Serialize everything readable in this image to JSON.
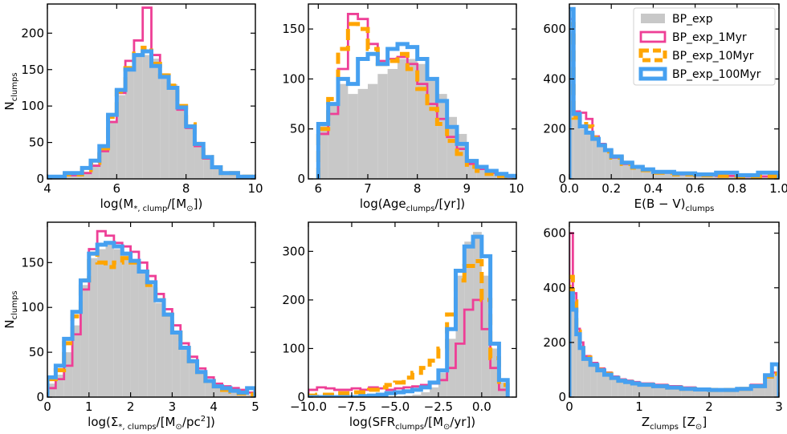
{
  "colors": {
    "BP_exp": "#c8c8c8",
    "BP_exp_1Myr": "#ee3f96",
    "BP_exp_10Myr": "#ffa500",
    "BP_exp_100Myr": "#46a0f0"
  },
  "legend": {
    "placement": "top-right of top-right panel",
    "entries": [
      "BP_exp",
      "BP_exp_1Myr",
      "BP_exp_10Myr",
      "BP_exp_100Myr"
    ]
  },
  "chart_data": [
    {
      "type": "histogram",
      "panel": "top-left",
      "xlabel": {
        "pre": "log(M",
        "sub": "*, clump",
        "post": "/[M",
        "sun": true,
        "end": "])"
      },
      "ylabel": {
        "main": "N",
        "sub": "clumps"
      },
      "xlim": [
        4,
        10
      ],
      "ylim": [
        0,
        240
      ],
      "xticks": [
        4,
        6,
        8,
        10
      ],
      "yticks": [
        0,
        50,
        100,
        150,
        200
      ],
      "bin_edges": [
        4.0,
        4.5,
        5.0,
        5.25,
        5.5,
        5.75,
        6.0,
        6.25,
        6.5,
        6.75,
        7.0,
        7.25,
        7.5,
        7.75,
        8.0,
        8.25,
        8.5,
        8.75,
        9.0,
        9.5,
        10.0
      ],
      "series": [
        {
          "name": "BP_exp",
          "values": [
            2,
            5,
            10,
            20,
            40,
            80,
            115,
            150,
            170,
            170,
            165,
            145,
            130,
            100,
            75,
            50,
            30,
            18,
            8,
            3
          ]
        },
        {
          "name": "BP_exp_1Myr",
          "values": [
            2,
            5,
            8,
            18,
            38,
            78,
            118,
            162,
            190,
            235,
            170,
            140,
            125,
            95,
            70,
            45,
            28,
            15,
            7,
            3
          ]
        },
        {
          "name": "BP_exp_10Myr",
          "values": [
            2,
            6,
            12,
            22,
            42,
            85,
            120,
            152,
            172,
            180,
            158,
            142,
            128,
            100,
            75,
            48,
            30,
            16,
            8,
            3
          ]
        },
        {
          "name": "BP_exp_100Myr",
          "values": [
            3,
            8,
            15,
            25,
            45,
            88,
            122,
            150,
            170,
            175,
            155,
            140,
            125,
            98,
            72,
            48,
            30,
            16,
            8,
            3
          ]
        }
      ]
    },
    {
      "type": "histogram",
      "panel": "top-middle",
      "xlabel": {
        "pre": "log(Age",
        "sub": "clumps",
        "post": "/[yr])"
      },
      "ylabel": null,
      "xlim": [
        5.8,
        10
      ],
      "ylim": [
        0,
        175
      ],
      "xticks": [
        6,
        7,
        8,
        9,
        10
      ],
      "yticks": [
        0,
        50,
        100,
        150
      ],
      "bin_edges": [
        6.0,
        6.2,
        6.4,
        6.6,
        6.8,
        7.0,
        7.2,
        7.4,
        7.6,
        7.8,
        8.0,
        8.2,
        8.4,
        8.6,
        8.8,
        9.0,
        9.2,
        9.4,
        9.6,
        9.8,
        10.0
      ],
      "series": [
        {
          "name": "BP_exp",
          "values": [
            55,
            75,
            95,
            85,
            90,
            95,
            105,
            110,
            120,
            120,
            115,
            100,
            85,
            62,
            45,
            20,
            12,
            8,
            6,
            3
          ]
        },
        {
          "name": "BP_exp_1Myr",
          "values": [
            45,
            65,
            110,
            165,
            160,
            135,
            118,
            120,
            122,
            115,
            95,
            75,
            60,
            42,
            30,
            15,
            10,
            6,
            4,
            2
          ]
        },
        {
          "name": "BP_exp_10Myr",
          "values": [
            50,
            80,
            130,
            155,
            150,
            130,
            115,
            118,
            125,
            110,
            90,
            70,
            55,
            38,
            25,
            12,
            8,
            5,
            3,
            2
          ]
        },
        {
          "name": "BP_exp_100Myr",
          "values": [
            55,
            75,
            100,
            95,
            120,
            125,
            115,
            130,
            135,
            132,
            120,
            100,
            78,
            52,
            35,
            18,
            12,
            8,
            5,
            3
          ]
        }
      ]
    },
    {
      "type": "histogram",
      "panel": "top-right",
      "xlabel": {
        "pre": "E(B − V)",
        "sub": "clumps",
        "post": ""
      },
      "ylabel": null,
      "xlim": [
        0,
        1.0
      ],
      "ylim": [
        0,
        700
      ],
      "xticks": [
        0.0,
        0.2,
        0.4,
        0.6,
        0.8,
        1.0
      ],
      "yticks": [
        0,
        200,
        400,
        600
      ],
      "bin_edges": [
        0.0,
        0.02,
        0.05,
        0.08,
        0.11,
        0.14,
        0.17,
        0.2,
        0.25,
        0.3,
        0.35,
        0.4,
        0.5,
        0.6,
        0.7,
        0.8,
        0.9,
        1.0
      ],
      "series": [
        {
          "name": "BP_exp",
          "values": [
            590,
            250,
            200,
            180,
            160,
            130,
            110,
            85,
            60,
            45,
            35,
            25,
            18,
            15,
            12,
            10,
            10
          ]
        },
        {
          "name": "BP_exp_1Myr",
          "values": [
            640,
            270,
            265,
            240,
            170,
            140,
            115,
            85,
            60,
            45,
            35,
            25,
            18,
            15,
            12,
            10,
            10
          ]
        },
        {
          "name": "BP_exp_10Myr",
          "values": [
            620,
            245,
            230,
            210,
            165,
            135,
            110,
            85,
            60,
            45,
            35,
            25,
            18,
            15,
            12,
            10,
            10
          ]
        },
        {
          "name": "BP_exp_100Myr",
          "values": [
            680,
            260,
            210,
            185,
            160,
            135,
            115,
            90,
            65,
            48,
            38,
            28,
            22,
            18,
            25,
            15,
            25
          ]
        }
      ]
    },
    {
      "type": "histogram",
      "panel": "bottom-left",
      "xlabel": {
        "pre": "log(Σ",
        "sub": "*, clumps",
        "post": "/[M",
        "sun": true,
        "end": "/pc",
        "sup": "2",
        "end2": "])"
      },
      "ylabel": {
        "main": "N",
        "sub": "clumps"
      },
      "xlim": [
        0,
        5
      ],
      "ylim": [
        0,
        195
      ],
      "xticks": [
        0,
        1,
        2,
        3,
        4,
        5
      ],
      "yticks": [
        0,
        50,
        100,
        150
      ],
      "bin_edges": [
        0.0,
        0.2,
        0.4,
        0.6,
        0.8,
        1.0,
        1.2,
        1.4,
        1.6,
        1.8,
        2.0,
        2.2,
        2.4,
        2.6,
        2.8,
        3.0,
        3.2,
        3.4,
        3.6,
        3.8,
        4.0,
        4.2,
        4.4,
        4.6,
        4.8,
        5.0
      ],
      "series": [
        {
          "name": "BP_exp",
          "values": [
            15,
            25,
            50,
            80,
            125,
            155,
            165,
            170,
            165,
            160,
            150,
            140,
            125,
            105,
            90,
            70,
            55,
            42,
            30,
            20,
            12,
            8,
            6,
            4,
            3
          ]
        },
        {
          "name": "BP_exp_1Myr",
          "values": [
            10,
            20,
            35,
            70,
            120,
            165,
            185,
            180,
            172,
            168,
            162,
            150,
            135,
            115,
            98,
            80,
            60,
            45,
            32,
            22,
            15,
            12,
            10,
            8,
            5
          ]
        },
        {
          "name": "BP_exp_10Myr",
          "values": [
            20,
            30,
            60,
            90,
            130,
            160,
            150,
            145,
            150,
            155,
            150,
            140,
            125,
            108,
            92,
            72,
            55,
            40,
            28,
            18,
            12,
            8,
            6,
            4,
            3
          ]
        },
        {
          "name": "BP_exp_100Myr",
          "values": [
            22,
            35,
            65,
            95,
            130,
            160,
            170,
            172,
            168,
            160,
            152,
            140,
            128,
            108,
            92,
            72,
            55,
            40,
            28,
            18,
            12,
            10,
            7,
            5,
            10
          ]
        }
      ]
    },
    {
      "type": "histogram",
      "panel": "bottom-middle",
      "xlabel": {
        "pre": "log(SFR",
        "sub": "clumps",
        "post": "/[M",
        "sun": true,
        "end": "/yr])"
      },
      "ylabel": null,
      "xlim": [
        -10,
        2
      ],
      "ylim": [
        0,
        360
      ],
      "xticks": [
        -10.0,
        -7.5,
        -5.0,
        -2.5,
        0.0
      ],
      "yticks": [
        0,
        100,
        200,
        300
      ],
      "bin_edges": [
        -10.0,
        -9.5,
        -9.0,
        -8.5,
        -8.0,
        -7.5,
        -7.0,
        -6.5,
        -6.0,
        -5.5,
        -5.0,
        -4.5,
        -4.0,
        -3.5,
        -3.0,
        -2.5,
        -2.0,
        -1.5,
        -1.0,
        -0.5,
        0.0,
        0.5,
        1.0,
        1.5
      ],
      "series": [
        {
          "name": "BP_exp",
          "values": [
            0,
            0,
            0,
            0,
            0,
            0,
            0,
            0,
            0,
            0,
            0,
            3,
            5,
            10,
            20,
            50,
            120,
            250,
            320,
            340,
            250,
            100,
            30
          ]
        },
        {
          "name": "BP_exp_1Myr",
          "values": [
            15,
            20,
            18,
            15,
            15,
            18,
            15,
            20,
            18,
            15,
            18,
            20,
            22,
            25,
            28,
            35,
            60,
            110,
            180,
            200,
            140,
            60,
            15
          ]
        },
        {
          "name": "BP_exp_10Myr",
          "values": [
            3,
            5,
            5,
            8,
            8,
            10,
            10,
            15,
            20,
            25,
            30,
            40,
            50,
            60,
            75,
            100,
            170,
            240,
            270,
            280,
            200,
            80,
            25
          ]
        },
        {
          "name": "BP_exp_100Myr",
          "values": [
            0,
            0,
            0,
            0,
            0,
            0,
            2,
            3,
            5,
            8,
            10,
            12,
            15,
            20,
            30,
            55,
            140,
            260,
            310,
            330,
            290,
            110,
            35
          ]
        }
      ]
    },
    {
      "type": "histogram",
      "panel": "bottom-right",
      "xlabel": {
        "pre": "Z",
        "sub": "clumps",
        "post": " [Z",
        "sun": true,
        "end": "]"
      },
      "ylabel": null,
      "xlim": [
        0,
        3
      ],
      "ylim": [
        0,
        640
      ],
      "xticks": [
        0,
        1,
        2,
        3
      ],
      "yticks": [
        0,
        200,
        400,
        600
      ],
      "bin_edges": [
        0.0,
        0.05,
        0.1,
        0.15,
        0.2,
        0.3,
        0.4,
        0.5,
        0.6,
        0.7,
        0.8,
        0.9,
        1.0,
        1.2,
        1.4,
        1.6,
        1.8,
        2.0,
        2.2,
        2.4,
        2.6,
        2.8,
        2.9,
        3.0
      ],
      "series": [
        {
          "name": "BP_exp",
          "values": [
            350,
            330,
            240,
            190,
            140,
            120,
            100,
            85,
            70,
            60,
            55,
            50,
            45,
            40,
            35,
            30,
            28,
            25,
            25,
            30,
            40,
            70,
            90
          ]
        },
        {
          "name": "BP_exp_1Myr",
          "values": [
            600,
            380,
            250,
            200,
            150,
            125,
            105,
            90,
            75,
            65,
            60,
            55,
            50,
            45,
            40,
            35,
            30,
            28,
            28,
            32,
            45,
            80,
            90
          ]
        },
        {
          "name": "BP_exp_10Myr",
          "values": [
            440,
            350,
            240,
            180,
            145,
            120,
            100,
            85,
            70,
            60,
            55,
            50,
            45,
            40,
            35,
            30,
            28,
            26,
            26,
            30,
            40,
            75,
            85
          ]
        },
        {
          "name": "BP_exp_100Myr",
          "values": [
            380,
            320,
            230,
            180,
            140,
            118,
            98,
            82,
            70,
            60,
            55,
            50,
            45,
            40,
            35,
            30,
            28,
            26,
            26,
            30,
            40,
            80,
            120
          ]
        }
      ]
    }
  ]
}
